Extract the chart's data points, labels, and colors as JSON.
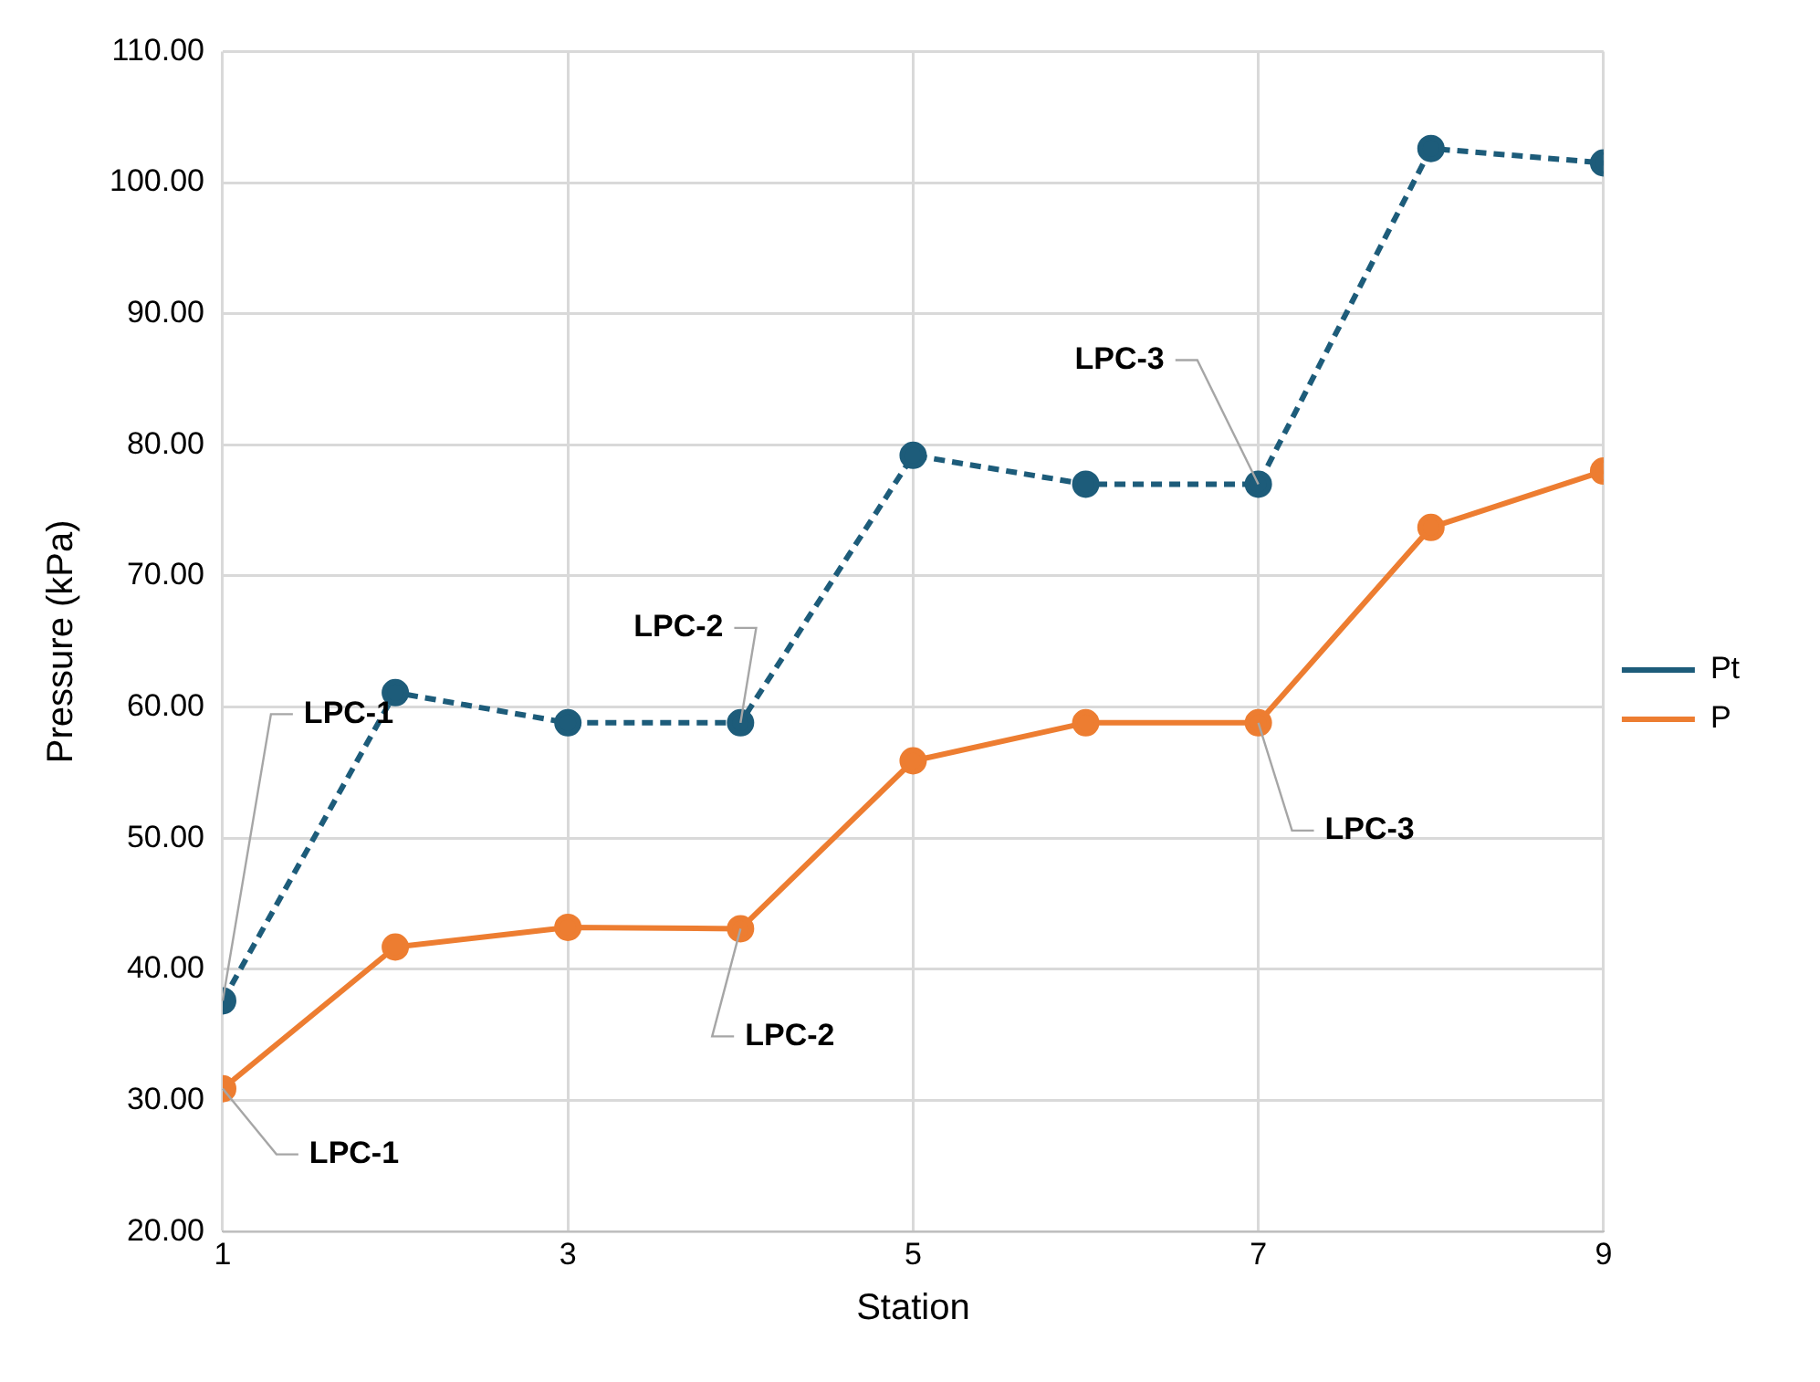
{
  "chart_data": {
    "type": "line",
    "xlabel": "Station",
    "ylabel": "Pressure (kPa)",
    "x": [
      1,
      2,
      3,
      4,
      5,
      6,
      7,
      8,
      9
    ],
    "series": [
      {
        "name": "Pt",
        "color": "#1d5c7a",
        "line_style": "dashed",
        "values": [
          37.6,
          61.1,
          58.8,
          58.8,
          79.2,
          77.0,
          77.0,
          102.6,
          101.5
        ]
      },
      {
        "name": "P",
        "color": "#ed7d31",
        "line_style": "solid",
        "values": [
          30.9,
          41.7,
          43.2,
          43.1,
          55.9,
          58.8,
          58.8,
          73.7,
          78.0
        ]
      }
    ],
    "xlim": [
      1,
      9
    ],
    "xticks": [
      1,
      3,
      5,
      7,
      9
    ],
    "ylim": [
      20,
      110
    ],
    "yticks": [
      {
        "value": 20,
        "label": "20.00"
      },
      {
        "value": 30,
        "label": "30.00"
      },
      {
        "value": 40,
        "label": "40.00"
      },
      {
        "value": 50,
        "label": "50.00"
      },
      {
        "value": 60,
        "label": "60.00"
      },
      {
        "value": 70,
        "label": "70.00"
      },
      {
        "value": 80,
        "label": "80.00"
      },
      {
        "value": 90,
        "label": "90.00"
      },
      {
        "value": 100,
        "label": "100.00"
      },
      {
        "value": 110,
        "label": "110.00"
      }
    ],
    "grid": true,
    "legend": "right",
    "marker": "circle",
    "annotations": [
      {
        "text": "LPC-1",
        "x": 1,
        "y": 37.6
      },
      {
        "text": "LPC-1",
        "x": 1,
        "y": 30.9
      },
      {
        "text": "LPC-2",
        "x": 4,
        "y": 58.8
      },
      {
        "text": "LPC-2",
        "x": 4,
        "y": 43.1
      },
      {
        "text": "LPC-3",
        "x": 7,
        "y": 77.0
      },
      {
        "text": "LPC-3",
        "x": 7,
        "y": 58.8
      }
    ]
  }
}
